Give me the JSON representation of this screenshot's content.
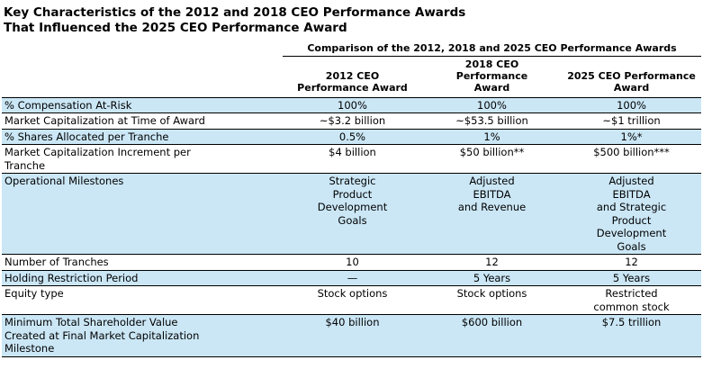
{
  "title": {
    "line1": "Key Characteristics of the 2012 and 2018 CEO Performance Awards",
    "line2": "That Influenced the 2025 CEO Performance Award"
  },
  "table": {
    "caption": "Comparison of the 2012, 2018 and 2025 CEO Performance Awards",
    "columns": [
      "2012 CEO\nPerformance Award",
      "2018 CEO\nPerformance\nAward",
      "2025 CEO Performance\nAward"
    ],
    "rows": [
      {
        "label": "% Compensation At-Risk",
        "values": [
          "100%",
          "100%",
          "100%"
        ]
      },
      {
        "label": "Market Capitalization at Time of Award",
        "values": [
          "~$3.2 billion",
          "~$53.5 billion",
          "~$1 trillion"
        ]
      },
      {
        "label": "% Shares Allocated per Tranche",
        "values": [
          "0.5%",
          "1%",
          "1%*"
        ]
      },
      {
        "label": "Market Capitalization Increment per\nTranche",
        "values": [
          "$4 billion",
          "$50 billion**",
          "$500 billion***"
        ]
      },
      {
        "label": "Operational Milestones",
        "values": [
          "Strategic\nProduct\nDevelopment\nGoals",
          "Adjusted\nEBITDA\nand Revenue",
          "Adjusted\nEBITDA\nand Strategic\nProduct\nDevelopment\nGoals"
        ]
      },
      {
        "label": "Number of Tranches",
        "values": [
          "10",
          "12",
          "12"
        ]
      },
      {
        "label": "Holding Restriction Period",
        "values": [
          "—",
          "5 Years",
          "5 Years"
        ]
      },
      {
        "label": "Equity type",
        "values": [
          "Stock options",
          "Stock options",
          "Restricted\ncommon stock"
        ]
      },
      {
        "label": "Minimum Total Shareholder Value\nCreated at Final Market Capitalization\nMilestone",
        "values": [
          "$40 billion",
          "$600 billion",
          "$7.5 trillion"
        ]
      }
    ]
  }
}
